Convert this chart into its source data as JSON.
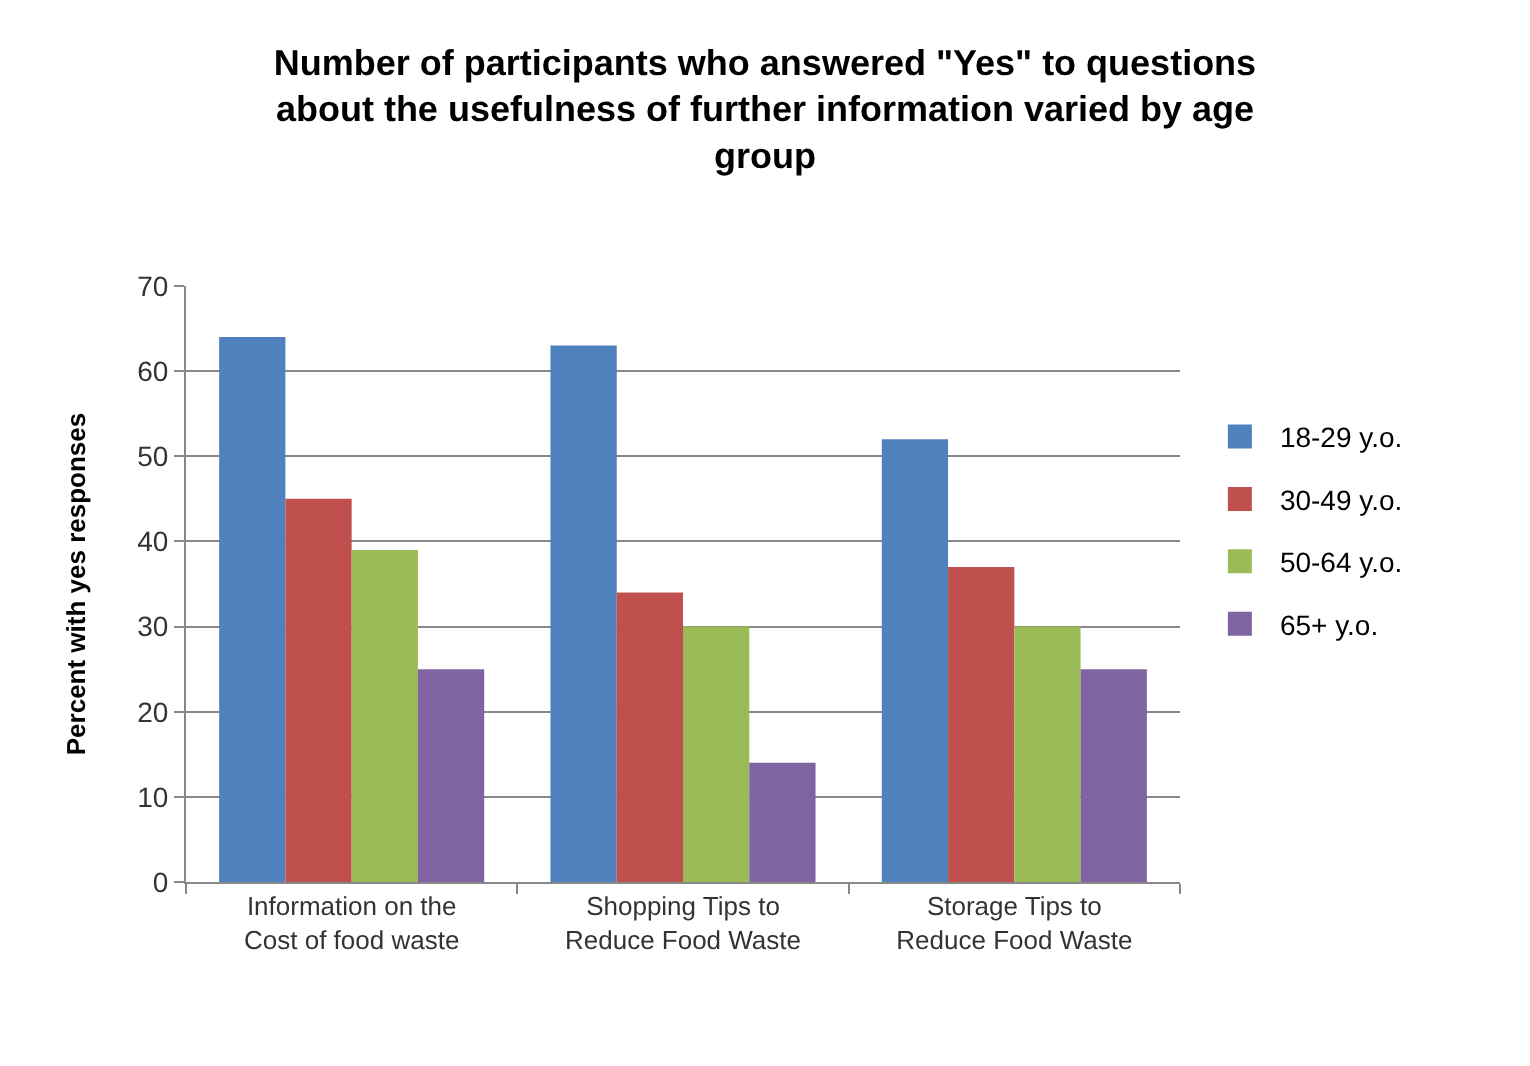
{
  "chart_data": {
    "type": "bar",
    "title": "Number of participants who answered \"Yes\" to questions about the usefulness of further information varied by age group",
    "ylabel": "Percent with yes responses",
    "categories": [
      "Information on the Cost of food waste",
      "Shopping Tips to Reduce Food Waste",
      "Storage Tips to Reduce Food Waste"
    ],
    "series": [
      {
        "name": "18-29 y.o.",
        "color": "#4f81bd",
        "values": [
          64,
          63,
          52
        ]
      },
      {
        "name": "30-49 y.o.",
        "color": "#c0504d",
        "values": [
          45,
          34,
          37
        ]
      },
      {
        "name": "50-64 y.o.",
        "color": "#9bbb59",
        "values": [
          39,
          30,
          30
        ]
      },
      {
        "name": "65+ y.o.",
        "color": "#8064a2",
        "values": [
          25,
          14,
          25
        ]
      }
    ],
    "ylim": [
      0,
      70
    ],
    "yticks": [
      0,
      10,
      20,
      30,
      40,
      50,
      60,
      70
    ],
    "grid": "y",
    "legend": "right"
  }
}
